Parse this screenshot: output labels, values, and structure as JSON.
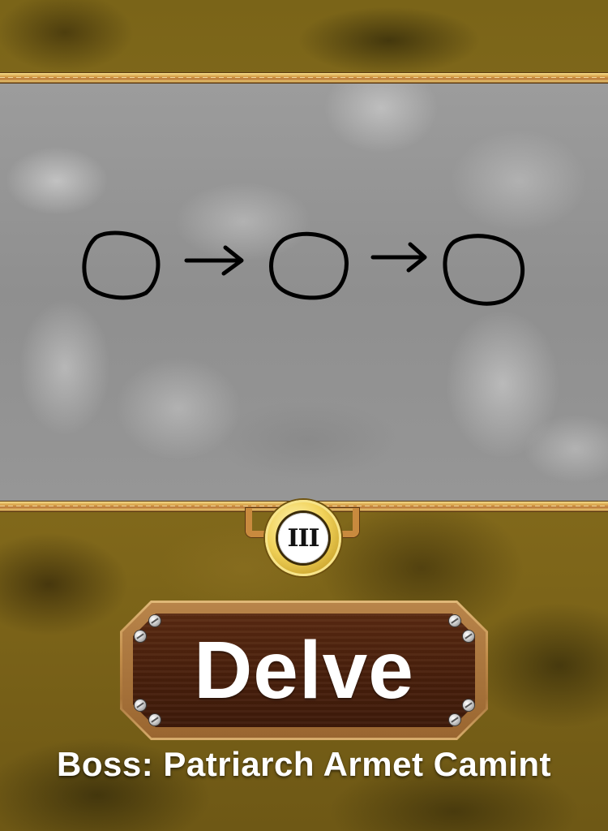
{
  "dungeon": {
    "title": "Delve",
    "level_numeral": "III",
    "boss_label": "Boss: Patriarch Armet Camint"
  },
  "colors": {
    "gold_rail": "#d8a24a",
    "plaque_wood": "#4a200c",
    "emblem_gold": "#f1d25a",
    "stone_gray": "#969696"
  }
}
